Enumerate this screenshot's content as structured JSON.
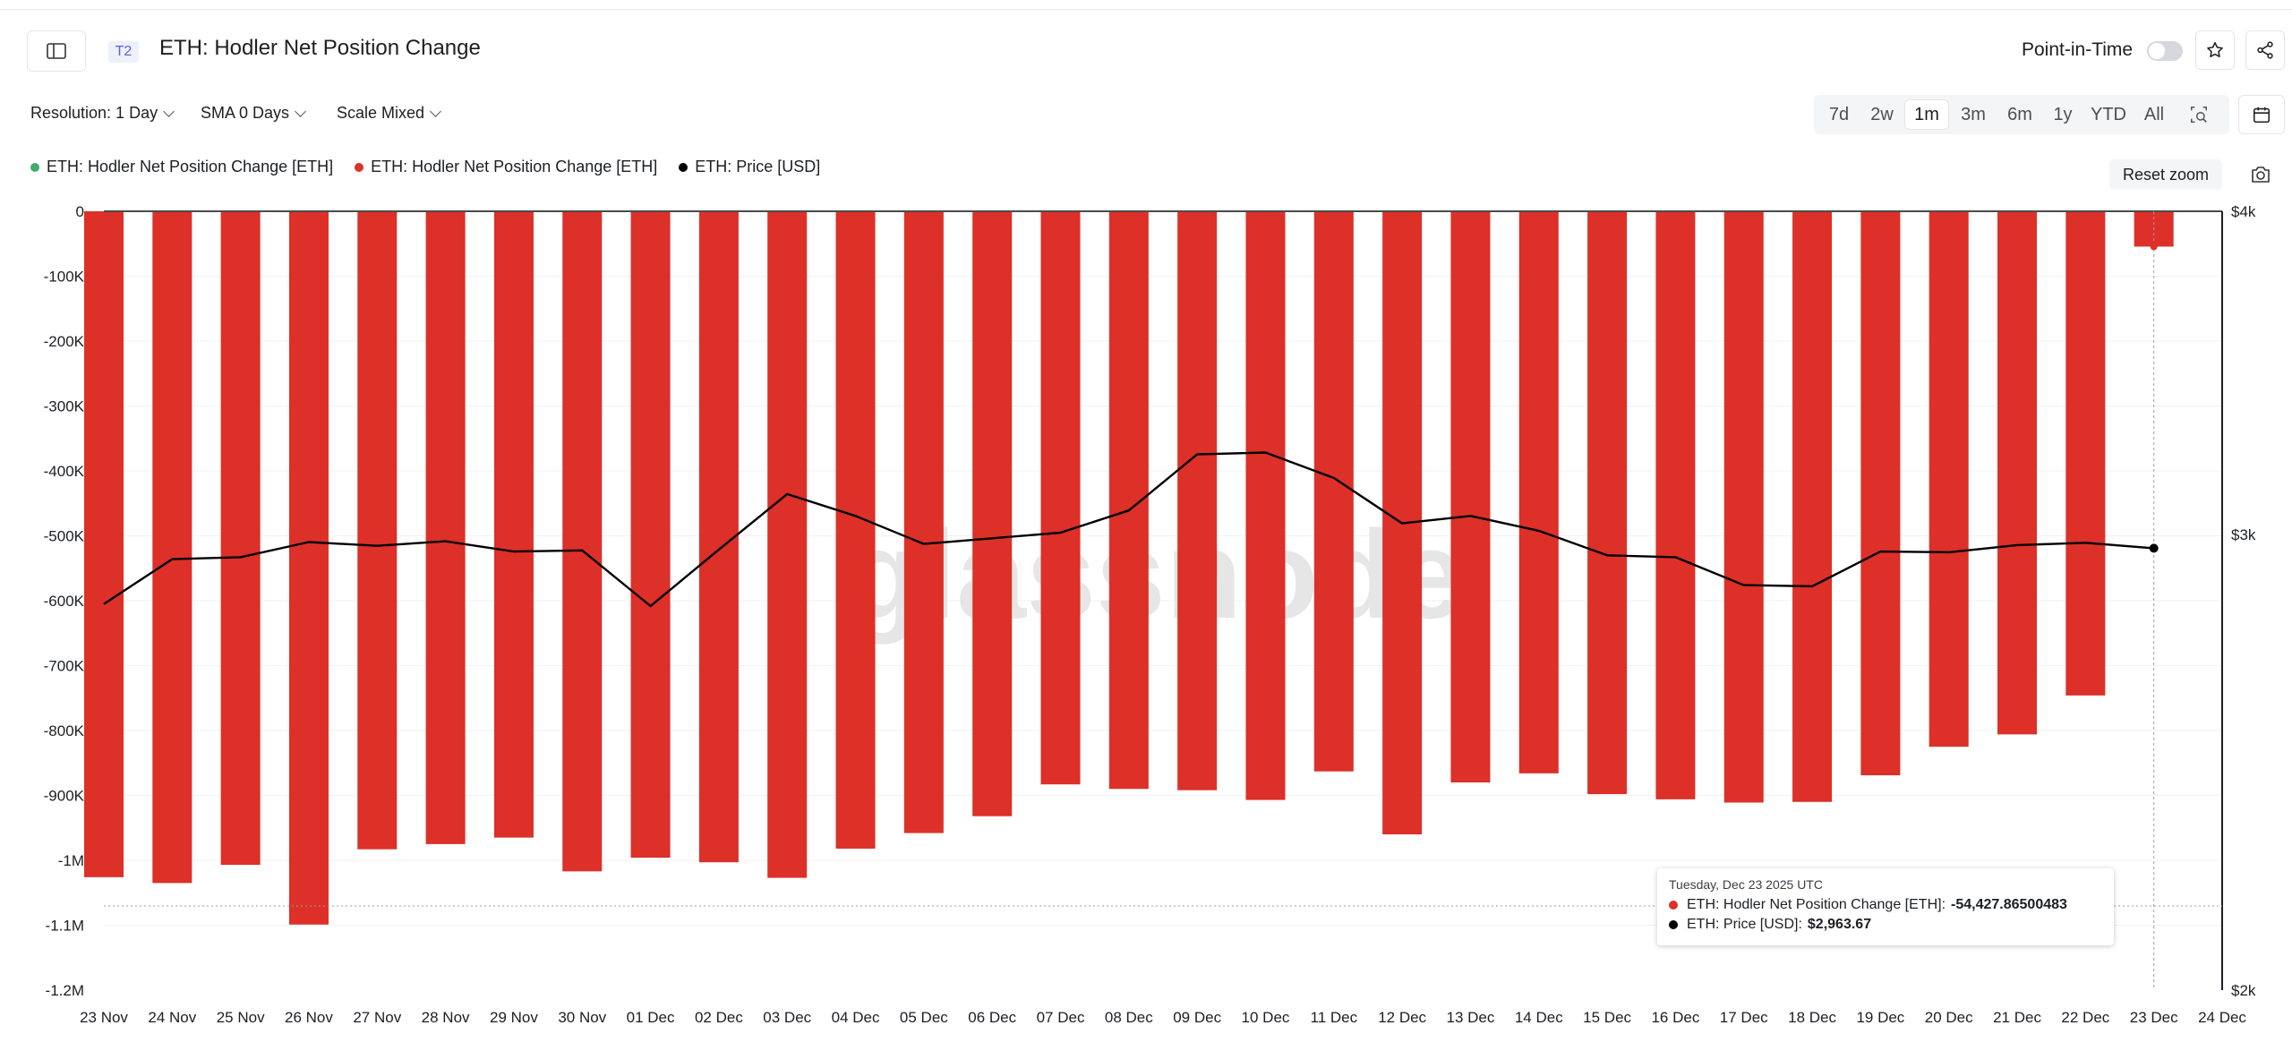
{
  "header": {
    "tier": "T2",
    "title": "ETH: Hodler Net Position Change",
    "pit_label": "Point-in-Time"
  },
  "controls": {
    "resolution": "Resolution: 1 Day",
    "sma": "SMA 0 Days",
    "scale": "Scale Mixed",
    "ranges": [
      "7d",
      "2w",
      "1m",
      "3m",
      "6m",
      "1y",
      "YTD",
      "All"
    ],
    "active_range": "1m",
    "reset_zoom": "Reset zoom"
  },
  "legend": [
    {
      "label": "ETH: Hodler Net Position Change [ETH]",
      "color": "#3fae6a"
    },
    {
      "label": "ETH: Hodler Net Position Change [ETH]",
      "color": "#dc3028"
    },
    {
      "label": "ETH: Price [USD]",
      "color": "#000000"
    }
  ],
  "watermark": "glassnode",
  "tooltip": {
    "date": "Tuesday, Dec 23 2025 UTC",
    "series1_label": "ETH: Hodler Net Position Change [ETH]: ",
    "series1_value": "-54,427.86500483",
    "series2_label": "ETH: Price [USD]: ",
    "series2_value": "$2,963.67"
  },
  "chart_data": {
    "type": "bar",
    "categories": [
      "23 Nov",
      "24 Nov",
      "25 Nov",
      "26 Nov",
      "27 Nov",
      "28 Nov",
      "29 Nov",
      "30 Nov",
      "01 Dec",
      "02 Dec",
      "03 Dec",
      "04 Dec",
      "05 Dec",
      "06 Dec",
      "07 Dec",
      "08 Dec",
      "09 Dec",
      "10 Dec",
      "11 Dec",
      "12 Dec",
      "13 Dec",
      "14 Dec",
      "15 Dec",
      "16 Dec",
      "17 Dec",
      "18 Dec",
      "19 Dec",
      "20 Dec",
      "21 Dec",
      "22 Dec",
      "23 Dec"
    ],
    "x_tick_labels": [
      "23 Nov",
      "24 Nov",
      "25 Nov",
      "26 Nov",
      "27 Nov",
      "28 Nov",
      "29 Nov",
      "30 Nov",
      "01 Dec",
      "02 Dec",
      "03 Dec",
      "04 Dec",
      "05 Dec",
      "06 Dec",
      "07 Dec",
      "08 Dec",
      "09 Dec",
      "10 Dec",
      "11 Dec",
      "12 Dec",
      "13 Dec",
      "14 Dec",
      "15 Dec",
      "16 Dec",
      "17 Dec",
      "18 Dec",
      "19 Dec",
      "20 Dec",
      "21 Dec",
      "22 Dec",
      "23 Dec",
      "24 Dec"
    ],
    "series": [
      {
        "name": "ETH: Hodler Net Position Change [ETH]",
        "axis": "left",
        "color": "#dc3028",
        "values": [
          -1026000,
          -1035000,
          -1007000,
          -1099000,
          -983000,
          -975000,
          -965000,
          -1017000,
          -996000,
          -1003000,
          -1027000,
          -982000,
          -958000,
          -932000,
          -883000,
          -890000,
          -892000,
          -907000,
          -863000,
          -960000,
          -880000,
          -866000,
          -898000,
          -906000,
          -911000,
          -910000,
          -869000,
          -825000,
          -806000,
          -746000,
          -54428
        ]
      },
      {
        "name": "ETH: Price [USD]",
        "axis": "right",
        "type": "line",
        "color": "#000000",
        "values": [
          2820,
          2935,
          2940,
          2980,
          2970,
          2982,
          2955,
          2958,
          2815,
          2960,
          3110,
          3050,
          2975,
          2990,
          3005,
          3065,
          3222,
          3227,
          3155,
          3030,
          3050,
          3010,
          2945,
          2940,
          2868,
          2865,
          2955,
          2953,
          2972,
          2978,
          2963.67
        ]
      }
    ],
    "left_axis": {
      "ticks": [
        "0",
        "-100K",
        "-200K",
        "-300K",
        "-400K",
        "-500K",
        "-600K",
        "-700K",
        "-800K",
        "-900K",
        "-1M",
        "-1.1M",
        "-1.2M"
      ],
      "ylim": [
        -1200000,
        0
      ]
    },
    "right_axis": {
      "ticks": [
        "$4k",
        "$3k",
        "$2k"
      ],
      "scale": "log",
      "ylim": [
        2000,
        4000
      ]
    },
    "grid": true,
    "legend_position": "top-left"
  }
}
